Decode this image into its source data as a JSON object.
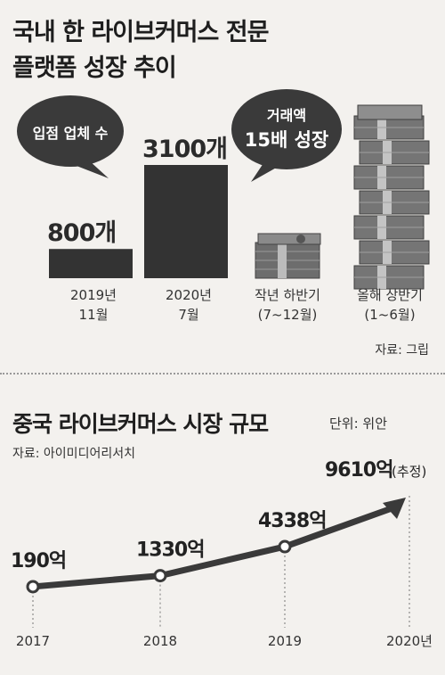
{
  "top": {
    "title_line1": "국내 한 라이브커머스 전문",
    "title_line2": "플랫폼 성장 추이",
    "bubble_left": "입점 업체 수",
    "bubble_right_line1": "거래액",
    "bubble_right_line2": "15배 성장",
    "bars": [
      {
        "value_label": "800개",
        "value": 800,
        "cat_line1": "2019년",
        "cat_line2": "11월"
      },
      {
        "value_label": "3100개",
        "value": 3100,
        "cat_line1": "2020년",
        "cat_line2": "7월"
      }
    ],
    "money": [
      {
        "cat_line1": "작년 하반기",
        "cat_line2": "(7~12월)"
      },
      {
        "cat_line1": "올해 상반기",
        "cat_line2": "(1~6월)"
      }
    ],
    "source": "자료: 그립"
  },
  "bottom": {
    "title": "중국 라이브커머스 시장 규모",
    "unit": "단위: 위안",
    "source": "자료: 아이미디어리서치"
  },
  "colors": {
    "bar": "#333333",
    "bubble": "#3a3a3a",
    "line": "#3a3a3a",
    "background": "#f3f1ee"
  },
  "chart_data": [
    {
      "type": "bar",
      "title": "입점 업체 수",
      "categories": [
        "2019년 11월",
        "2020년 7월"
      ],
      "values": [
        800,
        3100
      ],
      "labels": [
        "800개",
        "3100개"
      ]
    },
    {
      "type": "line",
      "title": "중국 라이브커머스 시장 규모",
      "x": [
        "2017",
        "2018",
        "2019",
        "2020년"
      ],
      "values": [
        190,
        1330,
        4338,
        9610
      ],
      "labels": [
        "190억",
        "1330억",
        "4338억",
        "9610억"
      ],
      "annotation_last": "(추정)",
      "unit": "단위: 위안"
    }
  ]
}
